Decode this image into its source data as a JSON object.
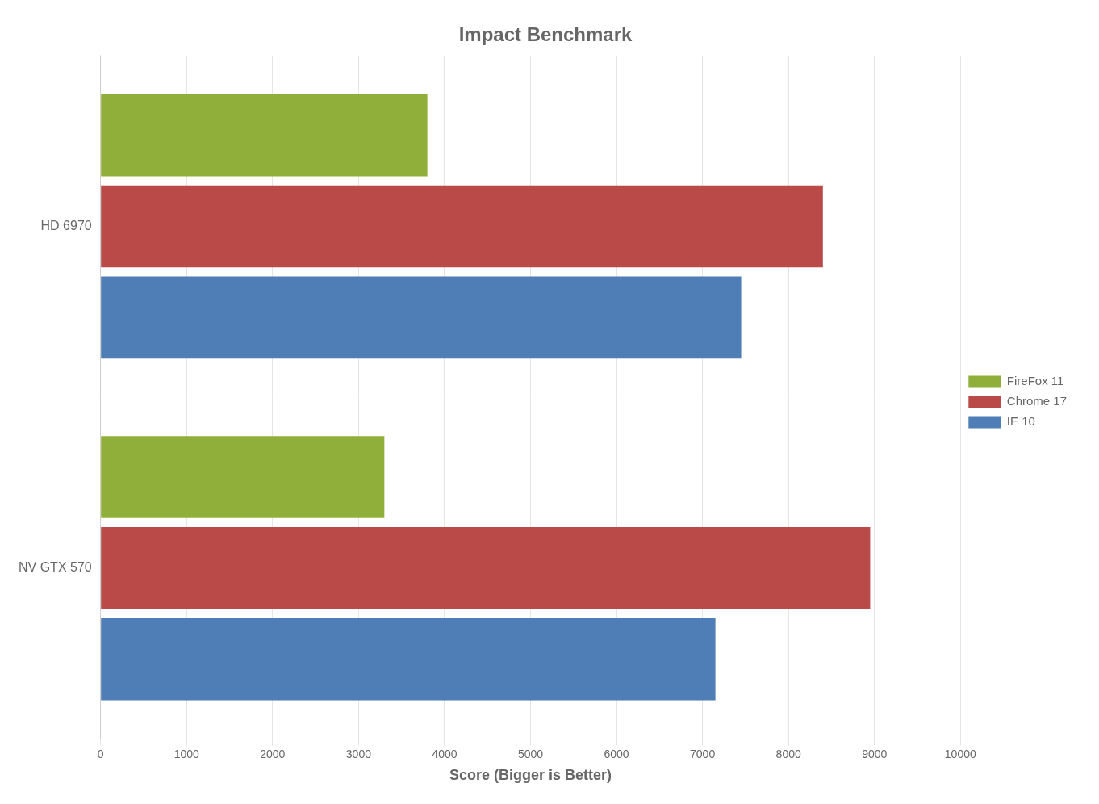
{
  "chart_data": {
    "type": "bar",
    "orientation": "horizontal",
    "title": "Impact Benchmark",
    "xlabel": "Score (Bigger is Better)",
    "categories": [
      "HD 6970",
      "NV GTX 570"
    ],
    "series": [
      {
        "name": "FireFox 11",
        "color": "#8faf3a",
        "values": [
          3800,
          3300
        ]
      },
      {
        "name": "Chrome 17",
        "color": "#b94a48",
        "values": [
          8400,
          8950
        ]
      },
      {
        "name": "IE 10",
        "color": "#4f7db5",
        "values": [
          7450,
          7150
        ]
      }
    ],
    "xlim": [
      0,
      10000
    ],
    "xticks": [
      0,
      1000,
      2000,
      3000,
      4000,
      5000,
      6000,
      7000,
      8000,
      9000,
      10000
    ],
    "grid": true,
    "legend": "right"
  }
}
